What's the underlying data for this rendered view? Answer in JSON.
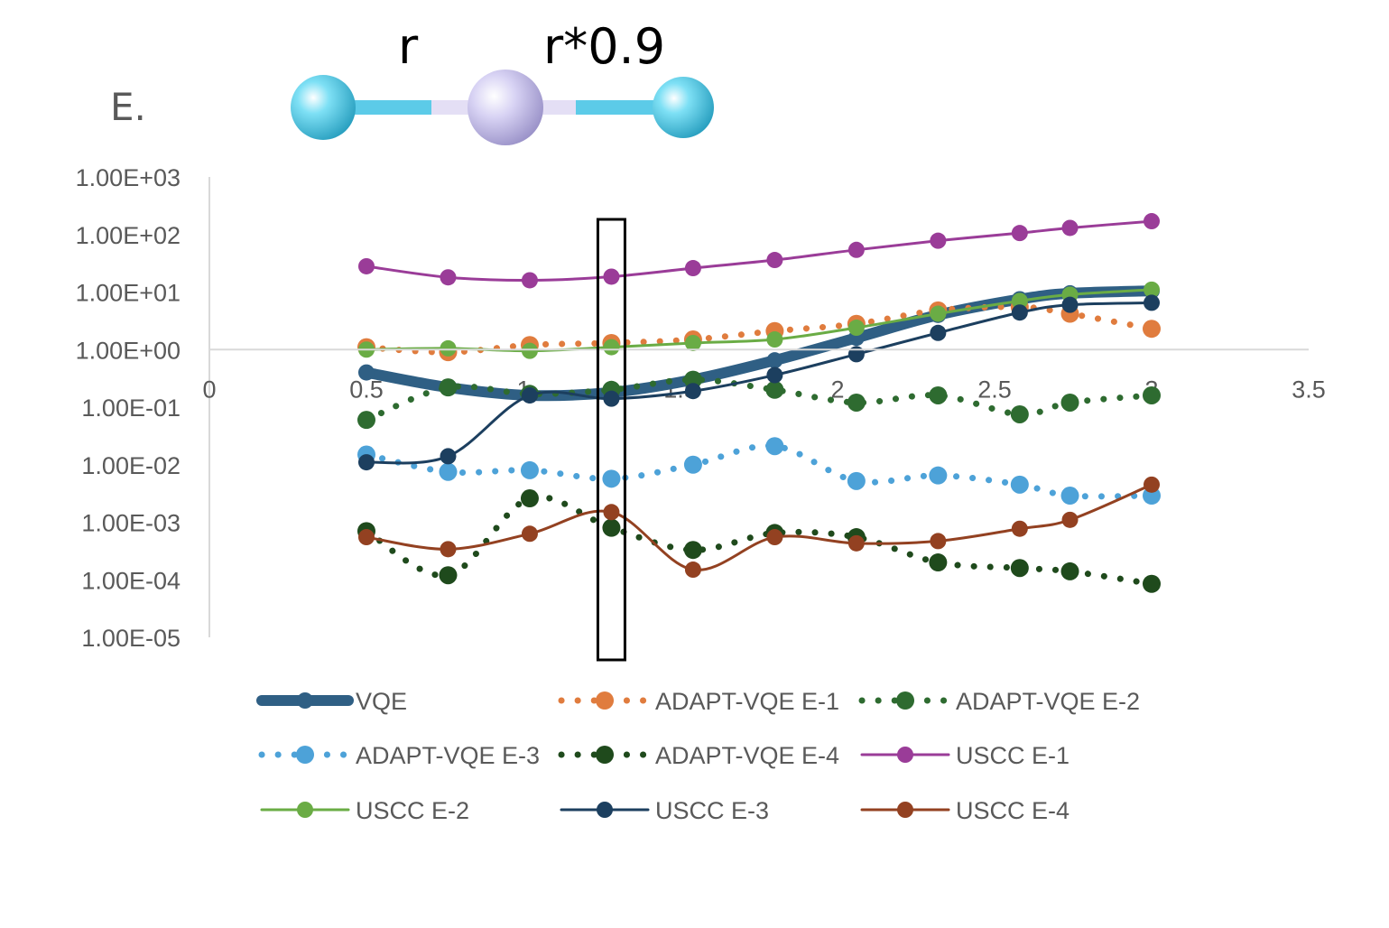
{
  "panel_label": "E.",
  "molecule": {
    "bond_left_label": "r",
    "bond_right_label": "r*0.9",
    "atom_colors": [
      "#5ccbe8",
      "#cfcaf0",
      "#5ccbe8"
    ]
  },
  "chart_data": {
    "type": "line",
    "title": "",
    "xlabel": "",
    "ylabel": "",
    "y_scale": "log",
    "xlim": [
      0,
      3.5
    ],
    "ylim": [
      1e-05,
      1000
    ],
    "x_ticks": [
      "0",
      "0.5",
      "1",
      "1.5",
      "2",
      "2.5",
      "3",
      "3.5"
    ],
    "y_ticks": [
      "1.00E+03",
      "1.00E+02",
      "1.00E+01",
      "1.00E+00",
      "1.00E-01",
      "1.00E-02",
      "1.00E-03",
      "1.00E-04",
      "1.00E-05"
    ],
    "x": [
      0.5,
      0.76,
      1.02,
      1.28,
      1.54,
      1.8,
      2.06,
      2.32,
      2.58,
      2.74,
      3.0
    ],
    "highlight_x": 1.28,
    "series": [
      {
        "name": "VQE",
        "color": "#2f5f84",
        "style": "thick",
        "values": [
          0.4,
          0.22,
          0.16,
          0.18,
          0.3,
          0.65,
          1.6,
          4.0,
          7.5,
          9.5,
          10.5
        ]
      },
      {
        "name": "ADAPT-VQE E-1",
        "color": "#e07c3e",
        "style": "dotted",
        "values": [
          1.1,
          0.9,
          1.2,
          1.3,
          1.5,
          2.1,
          2.8,
          4.8,
          5.5,
          4.2,
          2.3
        ]
      },
      {
        "name": "ADAPT-VQE E-2",
        "color": "#2e6b30",
        "style": "dotted",
        "values": [
          0.06,
          0.22,
          0.17,
          0.2,
          0.3,
          0.2,
          0.12,
          0.16,
          0.075,
          0.12,
          0.16
        ]
      },
      {
        "name": "ADAPT-VQE E-3",
        "color": "#4da2d8",
        "style": "dotted",
        "values": [
          0.015,
          0.0075,
          0.008,
          0.0057,
          0.01,
          0.021,
          0.0052,
          0.0065,
          0.0045,
          0.0029,
          0.0029
        ]
      },
      {
        "name": "ADAPT-VQE E-4",
        "color": "#1f4a1c",
        "style": "dotted",
        "values": [
          0.0007,
          0.00012,
          0.0026,
          0.0008,
          0.00033,
          0.00065,
          0.00055,
          0.0002,
          0.00016,
          0.00014,
          8.5e-05
        ]
      },
      {
        "name": "USCC E-1",
        "color": "#9a3c98",
        "style": "line",
        "values": [
          28,
          18,
          16,
          18.5,
          26,
          36,
          54,
          78,
          106,
          130,
          170
        ]
      },
      {
        "name": "USCC E-2",
        "color": "#6aac45",
        "style": "line",
        "values": [
          1.0,
          1.05,
          0.95,
          1.1,
          1.3,
          1.5,
          2.4,
          4.2,
          7.0,
          9.0,
          11.0
        ]
      },
      {
        "name": "USCC E-3",
        "color": "#1c3f5f",
        "style": "line",
        "values": [
          0.011,
          0.014,
          0.16,
          0.14,
          0.19,
          0.36,
          0.83,
          1.95,
          4.4,
          6.0,
          6.5
        ]
      },
      {
        "name": "USCC E-4",
        "color": "#934121",
        "style": "line",
        "values": [
          0.00055,
          0.00034,
          0.00063,
          0.0015,
          0.00015,
          0.00055,
          0.00043,
          0.00047,
          0.00077,
          0.0011,
          0.0045
        ]
      }
    ]
  }
}
